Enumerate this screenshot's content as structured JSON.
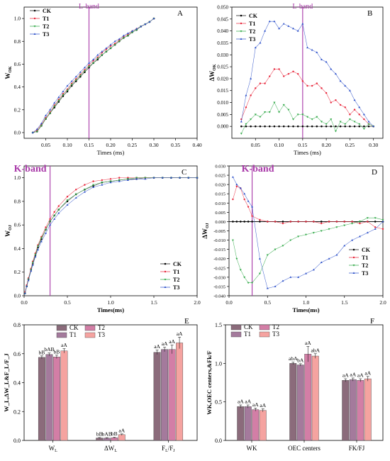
{
  "colors": {
    "CK": "#000000",
    "T1": "#e8263b",
    "T2": "#2fa846",
    "T3": "#2b4fc9",
    "band": "#a838a8",
    "barCK": "#8b6b7b",
    "barT1": "#a47a9c",
    "barT2": "#d37ea6",
    "barT3": "#f5a3a0"
  },
  "chart_data": [
    {
      "panel": "A",
      "type": "line",
      "band_label": "L-band",
      "band_x": 0.15,
      "xlabel": "Times (ms)",
      "ylabel": "W",
      "ylabel_sub": "OK",
      "xlim": [
        0,
        0.4
      ],
      "ylim": [
        -0.05,
        1.1
      ],
      "xticks": [
        "0.05",
        "0.10",
        "0.15",
        "0.20",
        "0.25",
        "0.30",
        "0.35",
        "0.40"
      ],
      "yticks": [
        "0.0",
        "0.2",
        "0.4",
        "0.6",
        "0.8",
        "1.0"
      ],
      "legend": [
        "CK",
        "T1",
        "T2",
        "T3"
      ],
      "x": [
        0.02,
        0.03,
        0.04,
        0.05,
        0.06,
        0.07,
        0.08,
        0.09,
        0.1,
        0.11,
        0.12,
        0.13,
        0.14,
        0.15,
        0.16,
        0.17,
        0.18,
        0.19,
        0.2,
        0.21,
        0.22,
        0.23,
        0.24,
        0.25,
        0.26,
        0.27,
        0.28,
        0.29,
        0.3
      ],
      "series": [
        {
          "name": "CK",
          "values": [
            0.0,
            0.01,
            0.06,
            0.12,
            0.17,
            0.22,
            0.27,
            0.32,
            0.36,
            0.41,
            0.45,
            0.49,
            0.53,
            0.57,
            0.61,
            0.64,
            0.68,
            0.71,
            0.74,
            0.77,
            0.8,
            0.83,
            0.85,
            0.88,
            0.9,
            0.93,
            0.95,
            0.97,
            1.0
          ]
        },
        {
          "name": "T1",
          "values": [
            0.0,
            0.02,
            0.07,
            0.13,
            0.18,
            0.24,
            0.29,
            0.34,
            0.38,
            0.43,
            0.47,
            0.51,
            0.55,
            0.59,
            0.63,
            0.66,
            0.7,
            0.73,
            0.76,
            0.78,
            0.81,
            0.84,
            0.86,
            0.89,
            0.91,
            0.93,
            0.95,
            0.97,
            1.0
          ]
        },
        {
          "name": "T2",
          "values": [
            0.0,
            0.01,
            0.06,
            0.12,
            0.17,
            0.23,
            0.28,
            0.33,
            0.37,
            0.42,
            0.46,
            0.5,
            0.54,
            0.58,
            0.61,
            0.65,
            0.68,
            0.71,
            0.74,
            0.77,
            0.8,
            0.83,
            0.85,
            0.88,
            0.9,
            0.93,
            0.95,
            0.97,
            1.0
          ]
        },
        {
          "name": "T3",
          "values": [
            0.0,
            0.03,
            0.08,
            0.15,
            0.2,
            0.26,
            0.31,
            0.36,
            0.41,
            0.45,
            0.49,
            0.53,
            0.57,
            0.61,
            0.64,
            0.68,
            0.71,
            0.74,
            0.77,
            0.8,
            0.82,
            0.85,
            0.87,
            0.89,
            0.91,
            0.93,
            0.95,
            0.97,
            1.0
          ]
        }
      ]
    },
    {
      "panel": "B",
      "type": "line",
      "band_label": "L-band",
      "band_x": 0.15,
      "xlabel": "Times (ms)",
      "ylabel": "ΔW",
      "ylabel_sub": "OK",
      "xlim": [
        0,
        0.32
      ],
      "ylim": [
        -0.005,
        0.05
      ],
      "xticks": [
        "0.05",
        "0.10",
        "0.15",
        "0.20",
        "0.25",
        "0.30"
      ],
      "yticks": [
        "0.000",
        "0.005",
        "0.010",
        "0.015",
        "0.020",
        "0.025",
        "0.030",
        "0.035",
        "0.040",
        "0.045",
        "0.050"
      ],
      "legend": [
        "CK",
        "T1",
        "T2",
        "T3"
      ],
      "x": [
        0.02,
        0.03,
        0.04,
        0.05,
        0.06,
        0.07,
        0.08,
        0.09,
        0.1,
        0.11,
        0.12,
        0.13,
        0.14,
        0.15,
        0.16,
        0.17,
        0.18,
        0.19,
        0.2,
        0.21,
        0.22,
        0.23,
        0.24,
        0.25,
        0.26,
        0.27,
        0.28,
        0.29,
        0.3
      ],
      "series": [
        {
          "name": "CK",
          "values": [
            0,
            0,
            0,
            0,
            0,
            0,
            0,
            0,
            0,
            0,
            0,
            0,
            0,
            0,
            0,
            0,
            0,
            0,
            0,
            0,
            0,
            0,
            0,
            0,
            0,
            0,
            0,
            0,
            0
          ]
        },
        {
          "name": "T1",
          "values": [
            0.003,
            0.008,
            0.013,
            0.016,
            0.018,
            0.018,
            0.021,
            0.024,
            0.024,
            0.021,
            0.022,
            0.023,
            0.022,
            0.019,
            0.017,
            0.017,
            0.018,
            0.016,
            0.014,
            0.01,
            0.011,
            0.009,
            0.008,
            0.005,
            0.007,
            0.005,
            0.003,
            0.001,
            0.0
          ]
        },
        {
          "name": "T2",
          "values": [
            -0.003,
            0.001,
            0.003,
            0.005,
            0.004,
            0.006,
            0.006,
            0.01,
            0.006,
            0.009,
            0.007,
            0.003,
            0.005,
            0.005,
            0.004,
            0.003,
            0.004,
            0.002,
            0.001,
            0.003,
            -0.002,
            0.002,
            0.001,
            0.003,
            0.002,
            0.001,
            -0.001,
            0.001,
            0.0
          ]
        },
        {
          "name": "T3",
          "values": [
            0.002,
            0.013,
            0.02,
            0.033,
            0.035,
            0.04,
            0.044,
            0.044,
            0.041,
            0.043,
            0.042,
            0.041,
            0.04,
            0.043,
            0.033,
            0.032,
            0.031,
            0.028,
            0.027,
            0.024,
            0.022,
            0.019,
            0.017,
            0.015,
            0.011,
            0.008,
            0.005,
            0.002,
            0.0
          ]
        }
      ]
    },
    {
      "panel": "C",
      "type": "line",
      "band_label": "K-band",
      "band_x": 0.3,
      "xlabel": "Times(ms)",
      "ylabel": "W",
      "ylabel_sub": "OJ",
      "xlim": [
        0,
        2.0
      ],
      "ylim": [
        0,
        1.1
      ],
      "xticks": [
        "0.0",
        "0.5",
        "1.0",
        "1.5",
        "2.0"
      ],
      "yticks": [
        "0.0",
        "0.2",
        "0.4",
        "0.6",
        "0.8",
        "1.0"
      ],
      "legend": [
        "CK",
        "T1",
        "T2",
        "T3"
      ],
      "x": [
        0.01,
        0.03,
        0.05,
        0.08,
        0.1,
        0.13,
        0.16,
        0.2,
        0.25,
        0.3,
        0.35,
        0.4,
        0.5,
        0.6,
        0.7,
        0.8,
        0.9,
        1.0,
        1.1,
        1.2,
        1.3,
        1.4,
        1.5,
        1.6,
        1.7,
        1.8,
        1.9,
        2.0
      ],
      "series": [
        {
          "name": "CK",
          "values": [
            0.02,
            0.08,
            0.14,
            0.22,
            0.27,
            0.34,
            0.41,
            0.48,
            0.56,
            0.63,
            0.68,
            0.73,
            0.8,
            0.86,
            0.9,
            0.93,
            0.96,
            0.97,
            0.98,
            0.99,
            0.99,
            1.0,
            1.0,
            1.0,
            1.0,
            1.0,
            1.0,
            1.0
          ]
        },
        {
          "name": "T1",
          "values": [
            0.03,
            0.09,
            0.15,
            0.23,
            0.29,
            0.36,
            0.43,
            0.5,
            0.58,
            0.65,
            0.71,
            0.76,
            0.84,
            0.9,
            0.94,
            0.97,
            0.98,
            0.99,
            1.0,
            1.0,
            1.0,
            1.0,
            1.0,
            1.0,
            1.0,
            1.0,
            1.0,
            1.0
          ]
        },
        {
          "name": "T2",
          "values": [
            0.02,
            0.08,
            0.14,
            0.22,
            0.28,
            0.35,
            0.42,
            0.49,
            0.56,
            0.63,
            0.68,
            0.73,
            0.81,
            0.86,
            0.9,
            0.94,
            0.96,
            0.97,
            0.98,
            0.99,
            1.0,
            1.0,
            1.0,
            1.0,
            1.0,
            1.0,
            1.0,
            1.0
          ]
        },
        {
          "name": "T3",
          "values": [
            0.02,
            0.08,
            0.13,
            0.21,
            0.26,
            0.33,
            0.39,
            0.46,
            0.53,
            0.6,
            0.65,
            0.7,
            0.77,
            0.83,
            0.88,
            0.92,
            0.94,
            0.96,
            0.97,
            0.98,
            0.99,
            0.99,
            1.0,
            1.0,
            1.0,
            1.0,
            1.0,
            1.0
          ]
        }
      ]
    },
    {
      "panel": "D",
      "type": "line",
      "band_label": "K-band",
      "band_x": 0.3,
      "xlabel": "Times(ms)",
      "ylabel": "ΔW",
      "ylabel_sub": "OJ",
      "xlim": [
        0,
        2.0
      ],
      "ylim": [
        -0.04,
        0.03
      ],
      "xticks": [
        "0.0",
        "0.5",
        "1.0",
        "1.5",
        "2.0"
      ],
      "yticks": [
        "-0.040",
        "-0.035",
        "-0.030",
        "-0.025",
        "-0.020",
        "-0.015",
        "-0.010",
        "-0.005",
        "0.000",
        "0.005",
        "0.010",
        "0.015",
        "0.020",
        "0.025",
        "0.030"
      ],
      "legend": [
        "CK",
        "T1",
        "T2",
        "T3"
      ],
      "x": [
        0.05,
        0.1,
        0.15,
        0.2,
        0.25,
        0.3,
        0.4,
        0.5,
        0.6,
        0.7,
        0.8,
        0.9,
        1.0,
        1.1,
        1.2,
        1.3,
        1.4,
        1.5,
        1.6,
        1.7,
        1.8,
        1.9,
        2.0
      ],
      "series": [
        {
          "name": "CK",
          "values": [
            0,
            0,
            0,
            0,
            0,
            0,
            0,
            0,
            0,
            0,
            0,
            0,
            0,
            0,
            0,
            0,
            0,
            0,
            0,
            0,
            0,
            0,
            0
          ]
        },
        {
          "name": "T1",
          "values": [
            0.012,
            0.019,
            0.018,
            0.012,
            0.008,
            0.003,
            0.001,
            0.0,
            0.0,
            -0.001,
            0.0,
            0.0,
            0.0,
            0.0,
            -0.001,
            0.0,
            0.0,
            0.0,
            0.0,
            -0.001,
            0.0,
            -0.003,
            -0.004
          ]
        },
        {
          "name": "T2",
          "values": [
            -0.01,
            -0.02,
            -0.026,
            -0.03,
            -0.033,
            -0.033,
            -0.028,
            -0.018,
            -0.015,
            -0.013,
            -0.01,
            -0.008,
            -0.007,
            -0.006,
            -0.005,
            -0.004,
            -0.003,
            -0.002,
            -0.001,
            0.0,
            0.002,
            0.002,
            0.001
          ]
        },
        {
          "name": "T3",
          "values": [
            0.024,
            0.02,
            0.018,
            0.015,
            0.011,
            0.008,
            -0.02,
            -0.036,
            -0.035,
            -0.032,
            -0.03,
            -0.03,
            -0.028,
            -0.026,
            -0.022,
            -0.02,
            -0.018,
            -0.013,
            -0.01,
            -0.008,
            -0.006,
            -0.004,
            0.0
          ]
        }
      ]
    },
    {
      "panel": "E",
      "type": "bar",
      "ylabel": "W_L,ΔW_L&F_L/F_J",
      "categories": [
        "W",
        "ΔW",
        "F"
      ],
      "category_labels": [
        [
          "W",
          "L",
          ""
        ],
        [
          "ΔW",
          "L",
          ""
        ],
        [
          "F",
          "L",
          "/F",
          "J"
        ]
      ],
      "ylim": [
        0,
        0.8
      ],
      "yticks": [
        "0.0",
        "0.2",
        "0.4",
        "0.6",
        "0.8"
      ],
      "legend": [
        "CK",
        "T1",
        "T2",
        "T3"
      ],
      "series": [
        {
          "name": "CK",
          "values": [
            0.575,
            0.017,
            0.61
          ],
          "errors": [
            0.01,
            0.003,
            0.015
          ],
          "letters": [
            "bB",
            "bB",
            "aA"
          ]
        },
        {
          "name": "T1",
          "values": [
            0.595,
            0.016,
            0.63
          ],
          "errors": [
            0.01,
            0.003,
            0.015
          ],
          "letters": [
            "bAB",
            "bAB",
            "aA"
          ]
        },
        {
          "name": "T2",
          "values": [
            0.578,
            0.019,
            0.63
          ],
          "errors": [
            0.012,
            0.003,
            0.03
          ],
          "letters": [
            "bB",
            "bB",
            "aA"
          ]
        },
        {
          "name": "T3",
          "values": [
            0.62,
            0.04,
            0.675
          ],
          "errors": [
            0.015,
            0.005,
            0.04
          ],
          "letters": [
            "aA",
            "aA",
            "aA"
          ]
        }
      ]
    },
    {
      "panel": "F",
      "type": "bar",
      "ylabel": "WK,OEC centers,&Fk/F",
      "categories": [
        "WK",
        "OEC centers",
        "FK/FJ"
      ],
      "ylim": [
        0,
        1.5
      ],
      "yticks": [
        "0.0",
        "0.5",
        "1.0",
        "1.5"
      ],
      "legend": [
        "CK",
        "T1",
        "T2",
        "T3"
      ],
      "series": [
        {
          "name": "CK",
          "values": [
            0.44,
            1.0,
            0.78
          ],
          "errors": [
            0.02,
            0.015,
            0.02
          ],
          "letters": [
            "aA",
            "abA",
            "aA"
          ]
        },
        {
          "name": "T1",
          "values": [
            0.44,
            0.98,
            0.79
          ],
          "errors": [
            0.02,
            0.015,
            0.02
          ],
          "letters": [
            "aA",
            "bA",
            "aA"
          ]
        },
        {
          "name": "T2",
          "values": [
            0.4,
            1.12,
            0.78
          ],
          "errors": [
            0.02,
            0.1,
            0.02
          ],
          "letters": [
            "aA",
            "aA",
            "aA"
          ]
        },
        {
          "name": "T3",
          "values": [
            0.39,
            1.095,
            0.8
          ],
          "errors": [
            0.02,
            0.03,
            0.03
          ],
          "letters": [
            "aA",
            "abA",
            "aA"
          ]
        }
      ]
    }
  ]
}
